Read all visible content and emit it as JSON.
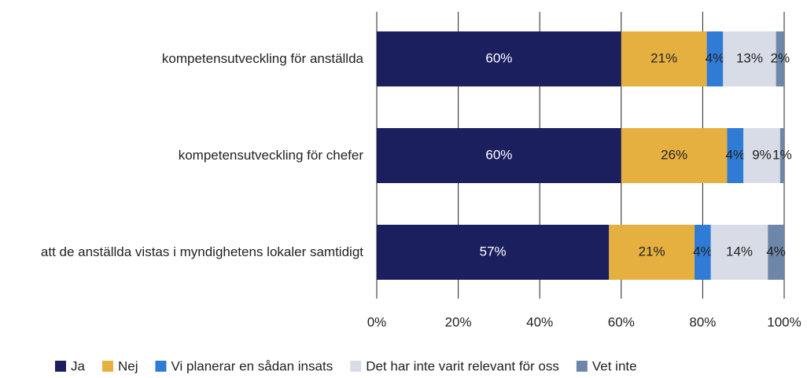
{
  "chart_data": {
    "type": "stacked-bar-horizontal",
    "categories": [
      "kompetensutveckling för anställda",
      "kompetensutveckling för chefer",
      "att de anställda vistas i myndighetens lokaler samtidigt"
    ],
    "series": [
      {
        "name": "Ja",
        "color": "#1b1f5e",
        "values": [
          60,
          60,
          57
        ],
        "value_labels": [
          "60%",
          "60%",
          "57%"
        ]
      },
      {
        "name": "Nej",
        "color": "#e5b040",
        "values": [
          21,
          26,
          21
        ],
        "value_labels": [
          "21%",
          "26%",
          "21%"
        ]
      },
      {
        "name": "Vi planerar en sådan insats",
        "color": "#2f7bd6",
        "values": [
          4,
          4,
          4
        ],
        "value_labels": [
          "4%",
          "4%",
          "4%"
        ]
      },
      {
        "name": "Det har inte varit relevant för oss",
        "color": "#d7dce6",
        "values": [
          13,
          9,
          14
        ],
        "value_labels": [
          "13%",
          "9%",
          "14%"
        ]
      },
      {
        "name": "Vet inte",
        "color": "#6e86a8",
        "values": [
          2,
          1,
          4
        ],
        "value_labels": [
          "2%",
          "1%",
          "4%"
        ]
      }
    ],
    "xlim": [
      0,
      100
    ],
    "xticks": [
      {
        "value": 0,
        "label": "0%"
      },
      {
        "value": 20,
        "label": "20%"
      },
      {
        "value": 40,
        "label": "40%"
      },
      {
        "value": 60,
        "label": "60%"
      },
      {
        "value": 80,
        "label": "80%"
      },
      {
        "value": 100,
        "label": "100%"
      }
    ],
    "grid": true,
    "legend": "bottom"
  }
}
